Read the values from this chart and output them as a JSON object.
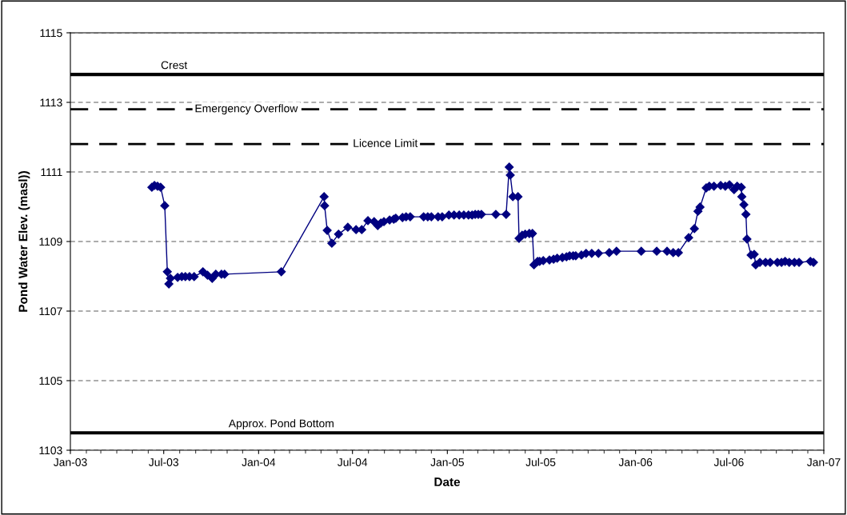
{
  "chart_data": {
    "type": "line",
    "xlabel": "Date",
    "ylabel": "Pond Water Elev. (masl))",
    "x": [
      "2003-06-08",
      "2003-06-13",
      "2003-06-19",
      "2003-06-25",
      "2003-07-03",
      "2003-07-08",
      "2003-07-11",
      "2003-07-14",
      "2003-07-28",
      "2003-08-05",
      "2003-08-12",
      "2003-08-20",
      "2003-08-29",
      "2003-09-15",
      "2003-09-24",
      "2003-10-03",
      "2003-10-10",
      "2003-10-21",
      "2003-10-27",
      "2004-02-14",
      "2004-05-07",
      "2004-05-08",
      "2004-05-13",
      "2004-05-22",
      "2004-06-04",
      "2004-06-22",
      "2004-07-08",
      "2004-07-19",
      "2004-07-31",
      "2004-08-12",
      "2004-08-19",
      "2004-08-25",
      "2004-08-31",
      "2004-09-11",
      "2004-09-19",
      "2004-09-23",
      "2004-10-06",
      "2004-10-13",
      "2004-10-21",
      "2004-11-16",
      "2004-11-24",
      "2004-12-01",
      "2004-12-14",
      "2004-12-22",
      "2005-01-04",
      "2005-01-14",
      "2005-01-24",
      "2005-02-02",
      "2005-02-11",
      "2005-02-18",
      "2005-02-24",
      "2005-03-02",
      "2005-03-08",
      "2005-04-05",
      "2005-04-25",
      "2005-05-01",
      "2005-05-03",
      "2005-05-08",
      "2005-05-18",
      "2005-05-20",
      "2005-05-26",
      "2005-06-01",
      "2005-06-09",
      "2005-06-15",
      "2005-06-18",
      "2005-06-25",
      "2005-06-29",
      "2005-07-06",
      "2005-07-18",
      "2005-07-26",
      "2005-08-02",
      "2005-08-12",
      "2005-08-20",
      "2005-08-26",
      "2005-09-02",
      "2005-09-07",
      "2005-09-18",
      "2005-09-27",
      "2005-10-08",
      "2005-10-21",
      "2005-11-11",
      "2005-11-25",
      "2006-01-12",
      "2006-02-11",
      "2006-03-03",
      "2006-03-15",
      "2006-03-25",
      "2006-04-14",
      "2006-04-25",
      "2006-05-02",
      "2006-05-06",
      "2006-05-18",
      "2006-05-24",
      "2006-06-02",
      "2006-06-15",
      "2006-06-24",
      "2006-07-02",
      "2006-07-11",
      "2006-07-17",
      "2006-07-25",
      "2006-07-26",
      "2006-07-30",
      "2006-08-03",
      "2006-08-05",
      "2006-08-13",
      "2006-08-19",
      "2006-08-22",
      "2006-08-30",
      "2006-09-10",
      "2006-09-19",
      "2006-10-03",
      "2006-10-11",
      "2006-10-18",
      "2006-10-26",
      "2006-11-05",
      "2006-11-14",
      "2006-12-06",
      "2006-12-12"
    ],
    "series": [
      {
        "color": "#000080",
        "values": [
          1110.56,
          1110.61,
          1110.59,
          1110.56,
          1110.03,
          1108.13,
          1107.78,
          1107.94,
          1107.97,
          1107.99,
          1107.99,
          1107.99,
          1107.99,
          1108.13,
          1108.03,
          1107.94,
          1108.06,
          1108.06,
          1108.06,
          1108.13,
          1110.29,
          1110.03,
          1109.32,
          1108.95,
          1109.21,
          1109.41,
          1109.34,
          1109.34,
          1109.6,
          1109.57,
          1109.46,
          1109.53,
          1109.57,
          1109.62,
          1109.64,
          1109.67,
          1109.69,
          1109.71,
          1109.71,
          1109.71,
          1109.71,
          1109.71,
          1109.71,
          1109.71,
          1109.76,
          1109.76,
          1109.76,
          1109.76,
          1109.76,
          1109.76,
          1109.78,
          1109.78,
          1109.78,
          1109.78,
          1109.78,
          1111.14,
          1110.91,
          1110.29,
          1110.29,
          1109.09,
          1109.18,
          1109.21,
          1109.23,
          1109.23,
          1108.33,
          1108.43,
          1108.43,
          1108.45,
          1108.47,
          1108.49,
          1108.52,
          1108.54,
          1108.56,
          1108.59,
          1108.59,
          1108.59,
          1108.61,
          1108.66,
          1108.66,
          1108.66,
          1108.68,
          1108.72,
          1108.72,
          1108.72,
          1108.72,
          1108.68,
          1108.68,
          1109.11,
          1109.37,
          1109.87,
          1109.99,
          1110.54,
          1110.59,
          1110.59,
          1110.61,
          1110.59,
          1110.63,
          1110.49,
          1110.59,
          1110.56,
          1110.29,
          1110.06,
          1109.78,
          1109.07,
          1108.61,
          1108.63,
          1108.33,
          1108.4,
          1108.4,
          1108.4,
          1108.4,
          1108.4,
          1108.43,
          1108.4,
          1108.4,
          1108.4,
          1108.43,
          1108.4
        ]
      }
    ],
    "marker": "diamond",
    "line_style": "solid",
    "xlim": [
      "2003-01-01",
      "2007-01-01"
    ],
    "xticks": [
      {
        "value": "2003-01-01",
        "label": "Jan-03"
      },
      {
        "value": "2003-07-01",
        "label": "Jul-03"
      },
      {
        "value": "2004-01-01",
        "label": "Jan-04"
      },
      {
        "value": "2004-07-01",
        "label": "Jul-04"
      },
      {
        "value": "2005-01-01",
        "label": "Jan-05"
      },
      {
        "value": "2005-07-01",
        "label": "Jul-05"
      },
      {
        "value": "2006-01-01",
        "label": "Jan-06"
      },
      {
        "value": "2006-07-01",
        "label": "Jul-06"
      },
      {
        "value": "2007-01-01",
        "label": "Jan-07"
      }
    ],
    "ylim": [
      1103,
      1115
    ],
    "yticks": [
      1103,
      1105,
      1107,
      1109,
      1111,
      1113,
      1115
    ],
    "grid": "y",
    "ref_lines": [
      {
        "axis": "y",
        "value": 1113.8,
        "label": "Crest",
        "color": "#000000",
        "line_style": "solid"
      },
      {
        "axis": "y",
        "value": 1112.8,
        "label": "Emergency Overflow",
        "color": "#000000",
        "line_style": "dashed"
      },
      {
        "axis": "y",
        "value": 1111.8,
        "label": "Licence Limit",
        "color": "#000000",
        "line_style": "dashed"
      },
      {
        "axis": "y",
        "value": 1103.5,
        "label": "Approx. Pond Bottom",
        "color": "#000000",
        "line_style": "solid"
      }
    ]
  }
}
